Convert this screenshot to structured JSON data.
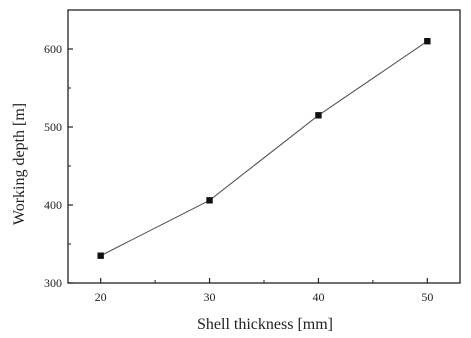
{
  "chart_data": {
    "type": "line",
    "xlabel": "Shell thickness [mm]",
    "ylabel": "Working depth [m]",
    "x": [
      20,
      30,
      40,
      50
    ],
    "series": [
      {
        "values": [
          335,
          406,
          515,
          610
        ]
      }
    ],
    "xlim": [
      17,
      53
    ],
    "ylim": [
      300,
      650
    ],
    "xticks": [
      20,
      30,
      40,
      50
    ],
    "yticks": [
      300,
      400,
      500,
      600
    ],
    "xtick_labels": [
      "20",
      "30",
      "40",
      "50"
    ],
    "ytick_labels": [
      "300",
      "400",
      "500",
      "600"
    ],
    "grid": false,
    "legend": "none",
    "marker": "square",
    "line_color": "#555555",
    "marker_color": "#111111"
  }
}
